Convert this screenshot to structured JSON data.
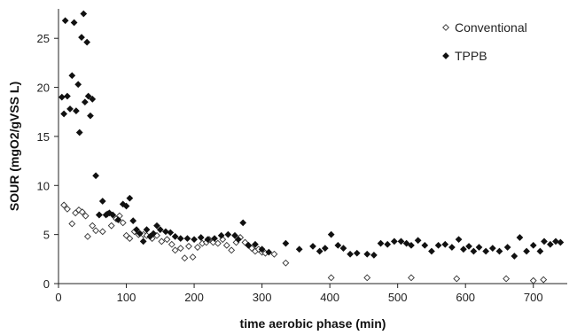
{
  "chart_data": {
    "type": "scatter",
    "title": "",
    "xlabel": "time aerobic phase (min)",
    "ylabel": "SOUR (mgO2/gVSS L)",
    "xlim": [
      0,
      750
    ],
    "ylim": [
      0,
      28
    ],
    "xticks": [
      0,
      100,
      200,
      300,
      400,
      500,
      600,
      700
    ],
    "yticks": [
      0,
      5,
      10,
      15,
      20,
      25
    ],
    "grid": false,
    "legend": "top-right",
    "series": [
      {
        "name": "Conventional",
        "marker": "open-diamond",
        "color": "#333333",
        "points": [
          [
            8,
            8.0
          ],
          [
            13,
            7.6
          ],
          [
            20,
            6.1
          ],
          [
            25,
            7.2
          ],
          [
            30,
            7.5
          ],
          [
            35,
            7.3
          ],
          [
            40,
            6.9
          ],
          [
            43,
            4.8
          ],
          [
            50,
            5.9
          ],
          [
            55,
            5.4
          ],
          [
            60,
            7.0
          ],
          [
            65,
            5.3
          ],
          [
            72,
            7.1
          ],
          [
            78,
            5.9
          ],
          [
            85,
            6.6
          ],
          [
            90,
            6.9
          ],
          [
            95,
            6.2
          ],
          [
            100,
            4.9
          ],
          [
            105,
            4.6
          ],
          [
            112,
            5.3
          ],
          [
            118,
            5.0
          ],
          [
            125,
            5.0
          ],
          [
            130,
            4.9
          ],
          [
            138,
            4.6
          ],
          [
            145,
            4.9
          ],
          [
            152,
            4.3
          ],
          [
            160,
            4.5
          ],
          [
            167,
            4.0
          ],
          [
            172,
            3.4
          ],
          [
            180,
            3.6
          ],
          [
            186,
            2.6
          ],
          [
            192,
            3.8
          ],
          [
            198,
            2.7
          ],
          [
            205,
            3.7
          ],
          [
            212,
            4.1
          ],
          [
            218,
            4.2
          ],
          [
            222,
            4.5
          ],
          [
            228,
            4.2
          ],
          [
            235,
            4.1
          ],
          [
            242,
            4.5
          ],
          [
            248,
            3.9
          ],
          [
            255,
            3.4
          ],
          [
            262,
            4.2
          ],
          [
            268,
            4.7
          ],
          [
            275,
            4.2
          ],
          [
            280,
            3.9
          ],
          [
            285,
            3.6
          ],
          [
            290,
            3.3
          ],
          [
            295,
            3.5
          ],
          [
            300,
            3.2
          ],
          [
            305,
            3.1
          ],
          [
            318,
            3.0
          ],
          [
            335,
            2.1
          ],
          [
            402,
            0.6
          ],
          [
            455,
            0.6
          ],
          [
            520,
            0.6
          ],
          [
            587,
            0.5
          ],
          [
            660,
            0.5
          ],
          [
            700,
            0.3
          ],
          [
            715,
            0.4
          ]
        ]
      },
      {
        "name": "TPPB",
        "marker": "filled-diamond",
        "color": "#111111",
        "points": [
          [
            5,
            19.0
          ],
          [
            8,
            17.3
          ],
          [
            10,
            26.8
          ],
          [
            13,
            19.1
          ],
          [
            17,
            17.8
          ],
          [
            20,
            21.2
          ],
          [
            23,
            26.6
          ],
          [
            26,
            17.6
          ],
          [
            29,
            20.3
          ],
          [
            31,
            15.4
          ],
          [
            34,
            25.1
          ],
          [
            37,
            27.5
          ],
          [
            39,
            18.5
          ],
          [
            42,
            24.6
          ],
          [
            44,
            19.1
          ],
          [
            47,
            17.1
          ],
          [
            50,
            18.8
          ],
          [
            55,
            11.0
          ],
          [
            60,
            7.0
          ],
          [
            65,
            8.4
          ],
          [
            70,
            7.0
          ],
          [
            75,
            7.2
          ],
          [
            80,
            7.0
          ],
          [
            88,
            6.5
          ],
          [
            95,
            8.1
          ],
          [
            100,
            7.9
          ],
          [
            105,
            8.7
          ],
          [
            110,
            6.4
          ],
          [
            115,
            5.5
          ],
          [
            120,
            5.1
          ],
          [
            125,
            4.3
          ],
          [
            130,
            5.5
          ],
          [
            135,
            4.8
          ],
          [
            140,
            5.1
          ],
          [
            145,
            5.9
          ],
          [
            150,
            5.5
          ],
          [
            158,
            5.3
          ],
          [
            165,
            5.2
          ],
          [
            172,
            4.8
          ],
          [
            180,
            4.6
          ],
          [
            190,
            4.6
          ],
          [
            200,
            4.5
          ],
          [
            210,
            4.7
          ],
          [
            220,
            4.5
          ],
          [
            230,
            4.6
          ],
          [
            240,
            4.9
          ],
          [
            250,
            5.0
          ],
          [
            260,
            4.9
          ],
          [
            265,
            4.5
          ],
          [
            272,
            6.2
          ],
          [
            280,
            3.9
          ],
          [
            290,
            4.0
          ],
          [
            300,
            3.5
          ],
          [
            310,
            3.2
          ],
          [
            335,
            4.1
          ],
          [
            355,
            3.5
          ],
          [
            375,
            3.8
          ],
          [
            385,
            3.3
          ],
          [
            393,
            3.6
          ],
          [
            402,
            5.0
          ],
          [
            412,
            3.9
          ],
          [
            420,
            3.6
          ],
          [
            430,
            3.0
          ],
          [
            440,
            3.1
          ],
          [
            455,
            3.0
          ],
          [
            465,
            2.9
          ],
          [
            475,
            4.1
          ],
          [
            485,
            4.0
          ],
          [
            495,
            4.3
          ],
          [
            505,
            4.3
          ],
          [
            513,
            4.1
          ],
          [
            520,
            3.9
          ],
          [
            530,
            4.4
          ],
          [
            540,
            3.9
          ],
          [
            550,
            3.3
          ],
          [
            560,
            3.9
          ],
          [
            570,
            4.0
          ],
          [
            580,
            3.7
          ],
          [
            590,
            4.5
          ],
          [
            597,
            3.5
          ],
          [
            605,
            3.8
          ],
          [
            612,
            3.3
          ],
          [
            620,
            3.7
          ],
          [
            630,
            3.3
          ],
          [
            640,
            3.6
          ],
          [
            650,
            3.3
          ],
          [
            662,
            3.7
          ],
          [
            672,
            2.8
          ],
          [
            680,
            4.7
          ],
          [
            690,
            3.3
          ],
          [
            700,
            3.9
          ],
          [
            710,
            3.3
          ],
          [
            716,
            4.3
          ],
          [
            725,
            4.0
          ],
          [
            733,
            4.3
          ],
          [
            740,
            4.2
          ]
        ]
      }
    ]
  }
}
